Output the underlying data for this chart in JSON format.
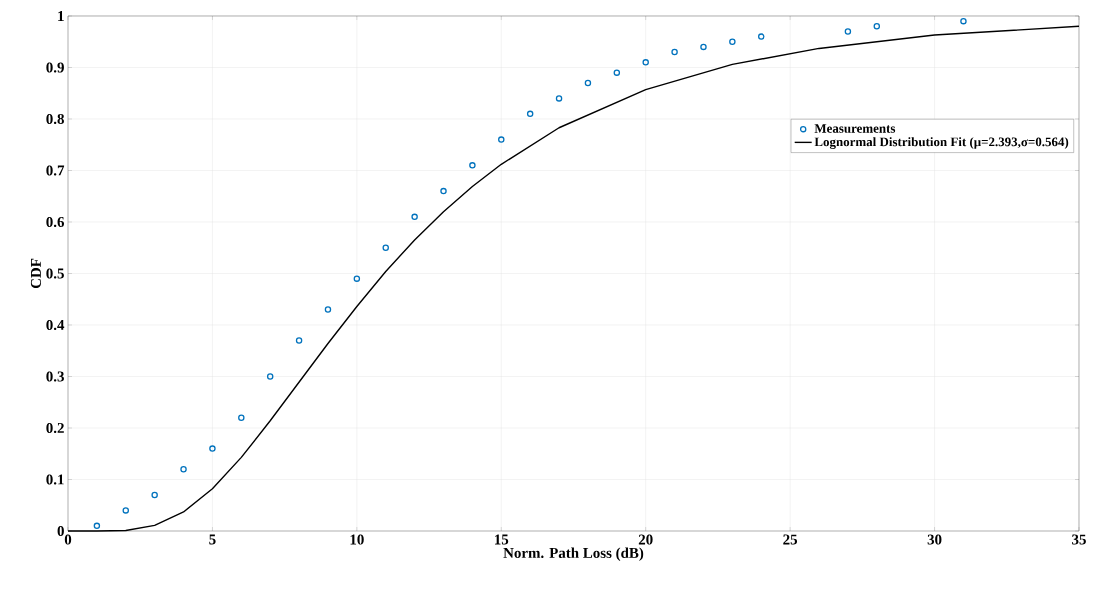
{
  "chart_data": {
    "type": "scatter",
    "xlabel": "Norm. Path Loss (dB)",
    "ylabel": "CDF",
    "xlim": [
      0,
      35
    ],
    "xticks": [
      0,
      5,
      10,
      15,
      20,
      25,
      30,
      35
    ],
    "ylim": [
      0,
      1
    ],
    "yticks": [
      0,
      0.1,
      0.2,
      0.3,
      0.4,
      0.5,
      0.6,
      0.7,
      0.8,
      0.9,
      1
    ],
    "grid": true,
    "legend": "right",
    "marker": "circle",
    "series": [
      {
        "name": "Measurements",
        "color": "#0072bd",
        "x": [
          1,
          2,
          3,
          4,
          5,
          6,
          7,
          8,
          9,
          10,
          11,
          12,
          13,
          14,
          15,
          16,
          17,
          18,
          19,
          20,
          21,
          22,
          23,
          24,
          27,
          28,
          31
        ],
        "values": [
          0.01,
          0.04,
          0.07,
          0.12,
          0.16,
          0.22,
          0.3,
          0.37,
          0.43,
          0.49,
          0.55,
          0.61,
          0.66,
          0.71,
          0.76,
          0.81,
          0.84,
          0.87,
          0.89,
          0.91,
          0.93,
          0.94,
          0.95,
          0.96,
          0.97,
          0.98,
          0.99
        ]
      },
      {
        "name": "Lognormal Distribution Fit (μ=2.393,σ=0.564)",
        "type": "line",
        "marker": "none",
        "line_style": "solid",
        "color": "#000000",
        "x": [
          0,
          1,
          2,
          3,
          4,
          5,
          6,
          7,
          8,
          9,
          10,
          11,
          12,
          13,
          14,
          15,
          17,
          20,
          23,
          26,
          30,
          35
        ],
        "values": [
          0,
          0,
          0.001,
          0.011,
          0.037,
          0.082,
          0.143,
          0.214,
          0.289,
          0.364,
          0.436,
          0.504,
          0.565,
          0.62,
          0.669,
          0.712,
          0.783,
          0.857,
          0.906,
          0.937,
          0.963,
          0.98
        ]
      }
    ]
  }
}
